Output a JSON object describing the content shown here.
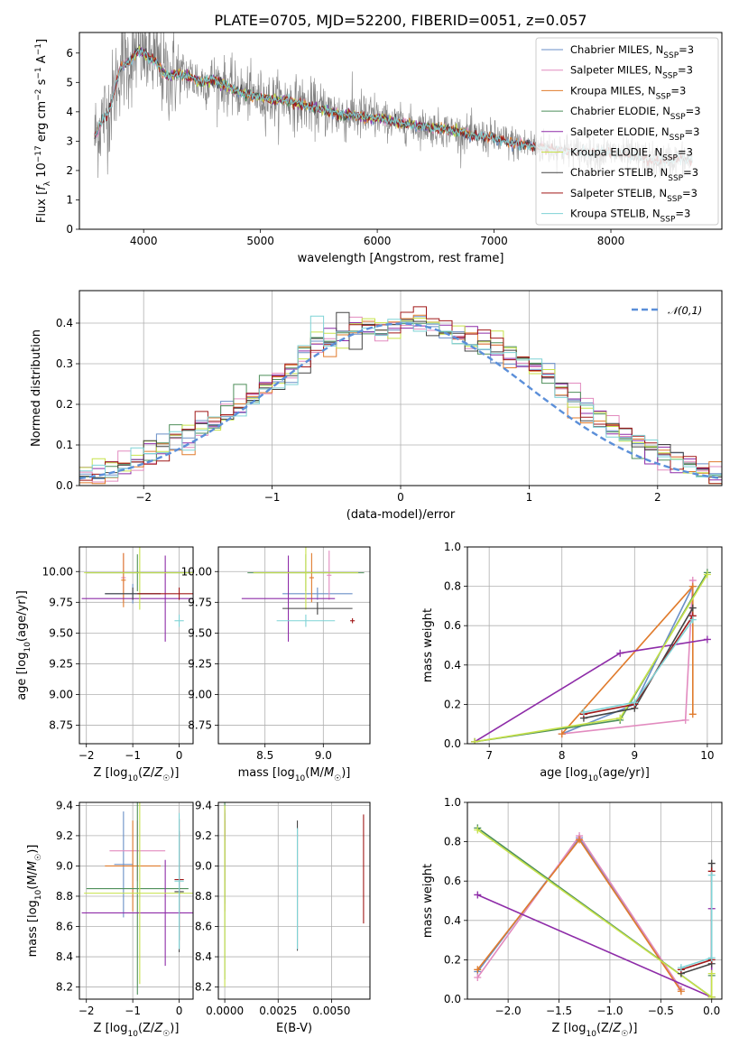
{
  "figure_title": "PLATE=0705, MJD=52200, FIBERID=0051, z=0.057",
  "colors": {
    "Chabrier MILES": "#6a8fc7",
    "Salpeter MILES": "#e28bbf",
    "Kroupa MILES": "#e07b2c",
    "Chabrier ELODIE": "#4e8f5a",
    "Salpeter ELODIE": "#8e2ca8",
    "Kroupa ELODIE": "#c7e24a",
    "Chabrier STELIB": "#444444",
    "Salpeter STELIB": "#a01818",
    "Kroupa STELIB": "#7fd3d6",
    "data": "#808080",
    "normal": "#5b8fd9"
  },
  "chart_data": [
    {
      "id": "spectrum",
      "type": "line",
      "title": "PLATE=0705, MJD=52200, FIBERID=0051, z=0.057",
      "xlabel": "wavelength [Angstrom, rest frame]",
      "ylabel": "Flux [f_λ 10^-17 erg cm^-2 s^-1 A^-1]",
      "xlim": [
        3450,
        8950
      ],
      "ylim": [
        0,
        6.7
      ],
      "xticks": [
        4000,
        5000,
        6000,
        7000,
        8000
      ],
      "yticks": [
        0,
        1,
        2,
        3,
        4,
        5,
        6
      ],
      "grid": false,
      "legend_position": "top-right",
      "legend": [
        "Chabrier MILES, N_SSP=3",
        "Salpeter MILES, N_SSP=3",
        "Kroupa MILES, N_SSP=3",
        "Chabrier ELODIE, N_SSP=3",
        "Salpeter ELODIE, N_SSP=3",
        "Kroupa ELODIE, N_SSP=3",
        "Chabrier STELIB, N_SSP=3",
        "Salpeter STELIB, N_SSP=3",
        "Kroupa STELIB, N_SSP=3"
      ],
      "model_continuum": {
        "x": [
          3580,
          3650,
          3700,
          3800,
          3900,
          3950,
          4000,
          4100,
          4200,
          4300,
          4400,
          4500,
          4600,
          4700,
          4800,
          4900,
          5000,
          5100,
          5200,
          5300,
          5400,
          5500,
          5600,
          5700,
          5800,
          5900,
          6000,
          6200,
          6400,
          6600,
          6800,
          7000,
          7200,
          7400,
          7600,
          7800,
          8000,
          8200,
          8400,
          8600,
          8700
        ],
        "y": [
          3.1,
          3.8,
          4.0,
          5.5,
          5.8,
          6.1,
          6.0,
          5.7,
          5.2,
          5.3,
          5.2,
          5.0,
          5.1,
          4.9,
          4.7,
          4.6,
          4.5,
          4.4,
          4.4,
          4.3,
          4.2,
          4.1,
          4.0,
          3.9,
          3.9,
          3.8,
          3.8,
          3.6,
          3.5,
          3.4,
          3.2,
          3.1,
          2.9,
          2.8,
          2.7,
          2.6,
          2.6,
          2.5,
          2.3,
          2.4,
          2.3
        ]
      },
      "data_extent": [
        3580,
        8700
      ]
    },
    {
      "id": "residuals",
      "type": "step",
      "xlabel": "(data-model)/error",
      "ylabel": "Normed distribution",
      "xlim": [
        -2.5,
        2.5
      ],
      "ylim": [
        0,
        0.48
      ],
      "xticks": [
        -2,
        -1,
        0,
        1,
        2
      ],
      "yticks": [
        0.0,
        0.1,
        0.2,
        0.3,
        0.4
      ],
      "grid": true,
      "legend_position": "top-right",
      "legend": [
        "𝒩(0,1)"
      ],
      "bin_edges": [
        -2.5,
        -2.4,
        -2.3,
        -2.2,
        -2.1,
        -2.0,
        -1.9,
        -1.8,
        -1.7,
        -1.6,
        -1.5,
        -1.4,
        -1.3,
        -1.2,
        -1.1,
        -1.0,
        -0.9,
        -0.8,
        -0.7,
        -0.6,
        -0.5,
        -0.4,
        -0.3,
        -0.2,
        -0.1,
        0.0,
        0.1,
        0.2,
        0.3,
        0.4,
        0.5,
        0.6,
        0.7,
        0.8,
        0.9,
        1.0,
        1.1,
        1.2,
        1.3,
        1.4,
        1.5,
        1.6,
        1.7,
        1.8,
        1.9,
        2.0,
        2.1,
        2.2,
        2.3,
        2.4,
        2.5
      ],
      "hist_base": [
        0.03,
        0.03,
        0.04,
        0.05,
        0.07,
        0.08,
        0.09,
        0.1,
        0.12,
        0.14,
        0.15,
        0.17,
        0.2,
        0.22,
        0.24,
        0.25,
        0.28,
        0.31,
        0.34,
        0.36,
        0.38,
        0.39,
        0.39,
        0.38,
        0.39,
        0.4,
        0.41,
        0.4,
        0.38,
        0.37,
        0.36,
        0.35,
        0.34,
        0.33,
        0.31,
        0.29,
        0.26,
        0.23,
        0.21,
        0.19,
        0.16,
        0.14,
        0.12,
        0.11,
        0.09,
        0.08,
        0.06,
        0.05,
        0.04,
        0.03
      ],
      "normal": {
        "mu": 0,
        "sigma": 1
      }
    },
    {
      "id": "age-vs-Z",
      "type": "errorbar",
      "xlabel": "Z [log10(Z/Z☉)]",
      "ylabel": "age  [log10(age/yr)]",
      "xlim": [
        -2.15,
        0.3
      ],
      "ylim": [
        8.6,
        10.2
      ],
      "xticks": [
        -2,
        -1,
        0
      ],
      "yticks": [
        8.75,
        9.0,
        9.25,
        9.5,
        9.75,
        10.0
      ],
      "grid": true,
      "points": [
        {
          "model": "Chabrier MILES",
          "x": -1.0,
          "y": 9.82,
          "xerr": 0.6,
          "yerr": 0.08
        },
        {
          "model": "Salpeter MILES",
          "x": -1.2,
          "y": 9.95,
          "xerr": 0.05,
          "yerr": 0.2
        },
        {
          "model": "Kroupa MILES",
          "x": -1.2,
          "y": 9.93,
          "xerr": 0.05,
          "yerr": 0.22
        },
        {
          "model": "Chabrier ELODIE",
          "x": -0.9,
          "y": 9.99,
          "xerr": 1.1,
          "yerr": 0.15
        },
        {
          "model": "Salpeter ELODIE",
          "x": -0.3,
          "y": 9.78,
          "xerr": 1.8,
          "yerr": 0.35
        },
        {
          "model": "Kroupa ELODIE",
          "x": -0.85,
          "y": 9.99,
          "xerr": 1.2,
          "yerr": 0.3
        },
        {
          "model": "Chabrier STELIB",
          "x": -1.0,
          "y": 9.82,
          "xerr": 0.6,
          "yerr": 0.05
        },
        {
          "model": "Salpeter STELIB",
          "x": 0.0,
          "y": 9.82,
          "xerr": 0.9,
          "yerr": 0.05
        },
        {
          "model": "Kroupa STELIB",
          "x": 0.0,
          "y": 9.6,
          "xerr": 0.1,
          "yerr": 0.05
        }
      ]
    },
    {
      "id": "age-vs-mass",
      "type": "errorbar",
      "xlabel": "mass [log10(M/M☉)]",
      "ylabel": "",
      "xlim": [
        8.1,
        9.4
      ],
      "ylim": [
        8.6,
        10.2
      ],
      "xticks": [
        8.5,
        9.0
      ],
      "yticks": [
        8.75,
        9.0,
        9.25,
        9.5,
        9.75,
        10.0
      ],
      "grid": true,
      "points": [
        {
          "model": "Chabrier MILES",
          "x": 8.95,
          "y": 9.82,
          "xerr": 0.3,
          "yerr": 0.05
        },
        {
          "model": "Salpeter MILES",
          "x": 9.05,
          "y": 9.97,
          "xerr": 0.02,
          "yerr": 0.2
        },
        {
          "model": "Kroupa MILES",
          "x": 8.9,
          "y": 9.95,
          "xerr": 0.02,
          "yerr": 0.2
        },
        {
          "model": "Chabrier ELODIE",
          "x": 8.85,
          "y": 9.99,
          "xerr": 0.5,
          "yerr": 0.15
        },
        {
          "model": "Salpeter ELODIE",
          "x": 8.7,
          "y": 9.78,
          "xerr": 0.4,
          "yerr": 0.35
        },
        {
          "model": "Kroupa ELODIE",
          "x": 8.85,
          "y": 9.99,
          "xerr": 0.45,
          "yerr": 0.3
        },
        {
          "model": "Chabrier STELIB",
          "x": 8.95,
          "y": 9.7,
          "xerr": 0.3,
          "yerr": 0.05
        },
        {
          "model": "Salpeter STELIB",
          "x": 9.25,
          "y": 9.6,
          "xerr": 0.02,
          "yerr": 0.02
        },
        {
          "model": "Kroupa STELIB",
          "x": 8.85,
          "y": 9.6,
          "xerr": 0.25,
          "yerr": 0.05
        }
      ]
    },
    {
      "id": "massweight-vs-age",
      "type": "line",
      "xlabel": "age  [log10(age/yr)]",
      "ylabel": "mass weight",
      "xlim": [
        6.7,
        10.2
      ],
      "ylim": [
        0,
        1.0
      ],
      "xticks": [
        7,
        8,
        9,
        10
      ],
      "yticks": [
        0.0,
        0.2,
        0.4,
        0.6,
        0.8,
        1.0
      ],
      "grid": true,
      "series": [
        {
          "model": "Chabrier MILES",
          "x": [
            8.0,
            9.0,
            9.8
          ],
          "y": [
            0.05,
            0.2,
            0.8
          ]
        },
        {
          "model": "Salpeter MILES",
          "x": [
            8.0,
            9.7,
            9.8
          ],
          "y": [
            0.05,
            0.12,
            0.83
          ]
        },
        {
          "model": "Kroupa MILES",
          "x": [
            8.0,
            9.8,
            9.8
          ],
          "y": [
            0.05,
            0.8,
            0.15
          ]
        },
        {
          "model": "Chabrier ELODIE",
          "x": [
            6.8,
            8.8,
            10.0
          ],
          "y": [
            0.01,
            0.12,
            0.87
          ]
        },
        {
          "model": "Salpeter ELODIE",
          "x": [
            6.8,
            8.8,
            10.0
          ],
          "y": [
            0.01,
            0.46,
            0.53
          ]
        },
        {
          "model": "Kroupa ELODIE",
          "x": [
            6.8,
            8.8,
            10.0
          ],
          "y": [
            0.01,
            0.13,
            0.86
          ]
        },
        {
          "model": "Chabrier STELIB",
          "x": [
            8.3,
            9.0,
            9.8
          ],
          "y": [
            0.13,
            0.18,
            0.69
          ]
        },
        {
          "model": "Salpeter STELIB",
          "x": [
            8.3,
            9.0,
            9.8
          ],
          "y": [
            0.15,
            0.2,
            0.65
          ]
        },
        {
          "model": "Kroupa STELIB",
          "x": [
            8.3,
            9.0,
            9.8
          ],
          "y": [
            0.16,
            0.21,
            0.63
          ]
        }
      ]
    },
    {
      "id": "mass-vs-Z",
      "type": "errorbar",
      "xlabel": "Z [log10(Z/Z☉)]",
      "ylabel": "mass [log10(M/M☉)]",
      "xlim": [
        -2.15,
        0.3
      ],
      "ylim": [
        8.12,
        9.42
      ],
      "xticks": [
        -2,
        -1,
        0
      ],
      "yticks": [
        8.2,
        8.4,
        8.6,
        8.8,
        9.0,
        9.2,
        9.4
      ],
      "grid": true,
      "points": [
        {
          "model": "Chabrier MILES",
          "x": -1.2,
          "y": 9.01,
          "xerr": 0.2,
          "yerr": 0.35
        },
        {
          "model": "Salpeter MILES",
          "x": -0.9,
          "y": 9.1,
          "xerr": 0.6,
          "yerr": 0.2
        },
        {
          "model": "Kroupa MILES",
          "x": -1.0,
          "y": 9.0,
          "xerr": 0.6,
          "yerr": 0.3
        },
        {
          "model": "Chabrier ELODIE",
          "x": -0.9,
          "y": 8.85,
          "xerr": 1.1,
          "yerr": 0.7
        },
        {
          "model": "Salpeter ELODIE",
          "x": -0.3,
          "y": 8.69,
          "xerr": 1.8,
          "yerr": 0.35
        },
        {
          "model": "Kroupa ELODIE",
          "x": -0.85,
          "y": 8.82,
          "xerr": 1.2,
          "yerr": 0.6
        },
        {
          "model": "Chabrier STELIB",
          "x": 0.0,
          "y": 8.83,
          "xerr": 0.1,
          "yerr": 0.4
        },
        {
          "model": "Salpeter STELIB",
          "x": 0.0,
          "y": 8.91,
          "xerr": 0.1,
          "yerr": 0.4
        },
        {
          "model": "Kroupa STELIB",
          "x": 0.0,
          "y": 8.9,
          "xerr": 0.1,
          "yerr": 0.45
        }
      ]
    },
    {
      "id": "mass-vs-ebv",
      "type": "errorbar",
      "xlabel": "E(B-V)",
      "ylabel": "",
      "xlim": [
        -0.0003,
        0.0068
      ],
      "ylim": [
        8.12,
        9.42
      ],
      "xticks": [
        0.0,
        0.0025,
        0.005
      ],
      "xtick_labels": [
        "0.0000",
        "0.0025",
        "0.0050"
      ],
      "yticks": [
        8.2,
        8.4,
        8.6,
        8.8,
        9.0,
        9.2,
        9.4
      ],
      "grid": true,
      "points": [
        {
          "model": "Chabrier MILES",
          "x": 0.0,
          "y": 9.05,
          "xerr": 0.0,
          "yerr": 0.3
        },
        {
          "model": "Salpeter MILES",
          "x": 0.0,
          "y": 9.1,
          "xerr": 0.0,
          "yerr": 0.2
        },
        {
          "model": "Kroupa MILES",
          "x": 0.0,
          "y": 9.0,
          "xerr": 0.0,
          "yerr": 0.3
        },
        {
          "model": "Chabrier ELODIE",
          "x": 0.0,
          "y": 8.85,
          "xerr": 0.0,
          "yerr": 0.6
        },
        {
          "model": "Salpeter ELODIE",
          "x": 0.0,
          "y": 9.27,
          "xerr": 0.0,
          "yerr": 0.1
        },
        {
          "model": "Kroupa ELODIE",
          "x": 0.0,
          "y": 8.8,
          "xerr": 0.0,
          "yerr": 0.6
        },
        {
          "model": "Chabrier STELIB",
          "x": 0.0034,
          "y": 8.87,
          "xerr": 0.0,
          "yerr": 0.43
        },
        {
          "model": "Salpeter STELIB",
          "x": 0.0065,
          "y": 8.98,
          "xerr": 0.0,
          "yerr": 0.36
        },
        {
          "model": "Kroupa STELIB",
          "x": 0.0034,
          "y": 8.85,
          "xerr": 0.0,
          "yerr": 0.4
        }
      ]
    },
    {
      "id": "massweight-vs-Z",
      "type": "line",
      "xlabel": "Z [log10(Z/Z☉)]",
      "ylabel": "mass weight",
      "xlim": [
        -2.4,
        0.1
      ],
      "ylim": [
        0,
        1.0
      ],
      "xticks": [
        -2.0,
        -1.5,
        -1.0,
        -0.5,
        0.0
      ],
      "yticks": [
        0.0,
        0.2,
        0.4,
        0.6,
        0.8,
        1.0
      ],
      "grid": true,
      "series": [
        {
          "model": "Chabrier MILES",
          "x": [
            -2.3,
            -1.3,
            -0.3
          ],
          "y": [
            0.14,
            0.82,
            0.05
          ]
        },
        {
          "model": "Salpeter MILES",
          "x": [
            -2.3,
            -1.3,
            -0.3
          ],
          "y": [
            0.11,
            0.83,
            0.05
          ]
        },
        {
          "model": "Kroupa MILES",
          "x": [
            -2.3,
            -1.3,
            -0.3
          ],
          "y": [
            0.15,
            0.81,
            0.04
          ]
        },
        {
          "model": "Chabrier ELODIE",
          "x": [
            -2.3,
            0.0,
            0.0
          ],
          "y": [
            0.87,
            0.01,
            0.12
          ]
        },
        {
          "model": "Salpeter ELODIE",
          "x": [
            -2.3,
            0.0,
            0.0
          ],
          "y": [
            0.53,
            0.01,
            0.46
          ]
        },
        {
          "model": "Kroupa ELODIE",
          "x": [
            -2.3,
            0.0,
            0.0
          ],
          "y": [
            0.86,
            0.01,
            0.13
          ]
        },
        {
          "model": "Chabrier STELIB",
          "x": [
            -0.3,
            0.0,
            0.0
          ],
          "y": [
            0.13,
            0.18,
            0.69
          ]
        },
        {
          "model": "Salpeter STELIB",
          "x": [
            -0.3,
            0.0,
            0.0
          ],
          "y": [
            0.15,
            0.2,
            0.65
          ]
        },
        {
          "model": "Kroupa STELIB",
          "x": [
            -0.3,
            0.0,
            0.0
          ],
          "y": [
            0.16,
            0.21,
            0.63
          ]
        }
      ]
    }
  ]
}
